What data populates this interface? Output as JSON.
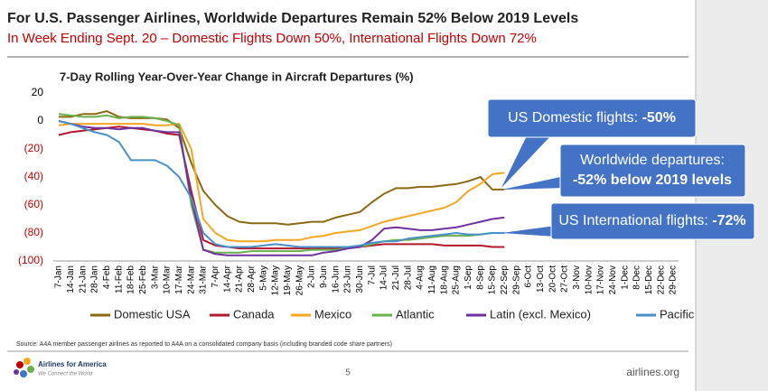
{
  "header": {
    "title": "For U.S. Passenger Airlines, Worldwide Departures Remain 52% Below 2019 Levels",
    "subtitle": "In Week Ending Sept. 20 – Domestic Flights Down 50%, International Flights Down 72%"
  },
  "chart_data": {
    "type": "line",
    "title": "7-Day Rolling Year-Over-Year Change in Aircraft Departures (%)",
    "categories": [
      "7-Jan",
      "14-Jan",
      "21-Jan",
      "28-Jan",
      "4-Feb",
      "11-Feb",
      "18-Feb",
      "25-Feb",
      "3-Mar",
      "10-Mar",
      "17-Mar",
      "24-Mar",
      "31-Mar",
      "7-Apr",
      "14-Apr",
      "21-Apr",
      "28-Apr",
      "5-May",
      "12-May",
      "19-May",
      "26-May",
      "2-Jun",
      "9-Jun",
      "16-Jun",
      "23-Jun",
      "30-Jun",
      "7-Jul",
      "14-Jul",
      "21-Jul",
      "28-Jul",
      "4-Aug",
      "11-Aug",
      "18-Aug",
      "25-Aug",
      "1-Sep",
      "8-Sep",
      "15-Sep",
      "22-Sep",
      "29-Sep",
      "6-Oct",
      "13-Oct",
      "20-Oct",
      "27-Oct",
      "3-Nov",
      "10-Nov",
      "17-Nov",
      "24-Nov",
      "1-Dec",
      "8-Dec",
      "15-Dec",
      "22-Dec",
      "29-Dec"
    ],
    "ylim": [
      -100,
      20
    ],
    "yticks": [
      20,
      0,
      {
        "value": -20,
        "label": "(20)"
      },
      {
        "value": -40,
        "label": "(40)"
      },
      {
        "value": -60,
        "label": "(60)"
      },
      {
        "value": -80,
        "label": "(80)"
      },
      {
        "value": -100,
        "label": "(100)"
      }
    ],
    "negative_tick_color": "#c00000",
    "series": [
      {
        "name": "Domestic USA",
        "color": "#8b6914",
        "values": [
          3,
          3,
          5,
          5,
          7,
          3,
          2,
          2,
          2,
          1,
          -5,
          -30,
          -50,
          -60,
          -68,
          -72,
          -73,
          -73,
          -73,
          -74,
          -73,
          -72,
          -72,
          -69,
          -67,
          -65,
          -58,
          -52,
          -48,
          -48,
          -47,
          -47,
          -46,
          -45,
          -43,
          -40,
          -49,
          -49,
          null,
          null,
          null,
          null,
          null,
          null,
          null,
          null,
          null,
          null,
          null,
          null,
          null,
          null
        ]
      },
      {
        "name": "Canada",
        "color": "#b2182b",
        "values": [
          -10,
          -8,
          -7,
          -6,
          -5,
          -4,
          -5,
          -6,
          -7,
          -9,
          -10,
          -50,
          -85,
          -89,
          -90,
          -91,
          -91,
          -91,
          -91,
          -91,
          -91,
          -91,
          -91,
          -91,
          -90,
          -90,
          -89,
          -88,
          -88,
          -88,
          -88,
          -88,
          -89,
          -89,
          -89,
          -89,
          -90,
          -90,
          null,
          null,
          null,
          null,
          null,
          null,
          null,
          null,
          null,
          null,
          null,
          null,
          null,
          null
        ]
      },
      {
        "name": "Mexico",
        "color": "#f5a623",
        "values": [
          -3,
          -2,
          -2,
          -2,
          -2,
          -2,
          -2,
          -2,
          -3,
          -3,
          -2,
          -20,
          -70,
          -80,
          -85,
          -86,
          -86,
          -86,
          -85,
          -85,
          -85,
          -83,
          -82,
          -80,
          -79,
          -78,
          -75,
          -72,
          -70,
          -68,
          -66,
          -64,
          -62,
          -58,
          -50,
          -45,
          -38,
          -37,
          null,
          null,
          null,
          null,
          null,
          null,
          null,
          null,
          null,
          null,
          null,
          null,
          null,
          null
        ]
      },
      {
        "name": "Atlantic",
        "color": "#6ab04c",
        "values": [
          5,
          4,
          3,
          3,
          4,
          2,
          3,
          3,
          2,
          0,
          -3,
          -60,
          -92,
          -94,
          -94,
          -94,
          -93,
          -93,
          -93,
          -93,
          -93,
          -92,
          -92,
          -92,
          -91,
          -90,
          -88,
          -86,
          -85,
          -85,
          -84,
          -83,
          -82,
          -82,
          -82,
          -81,
          -80,
          -80,
          null,
          null,
          null,
          null,
          null,
          null,
          null,
          null,
          null,
          null,
          null,
          null,
          null,
          null
        ]
      },
      {
        "name": "Latin (excl. Mexico)",
        "color": "#7030a0",
        "values": [
          0,
          -2,
          -4,
          -5,
          -5,
          -6,
          -5,
          -5,
          -7,
          -8,
          -8,
          -55,
          -92,
          -95,
          -96,
          -96,
          -96,
          -96,
          -96,
          -96,
          -96,
          -96,
          -94,
          -93,
          -91,
          -90,
          -85,
          -77,
          -76,
          -77,
          -78,
          -78,
          -77,
          -76,
          -74,
          -72,
          -70,
          -69,
          null,
          null,
          null,
          null,
          null,
          null,
          null,
          null,
          null,
          null,
          null,
          null,
          null,
          null
        ]
      },
      {
        "name": "Pacific",
        "color": "#4a90c8",
        "values": [
          0,
          -2,
          -5,
          -8,
          -10,
          -15,
          -28,
          -28,
          -28,
          -32,
          -40,
          -55,
          -80,
          -88,
          -90,
          -90,
          -90,
          -89,
          -88,
          -89,
          -90,
          -90,
          -90,
          -90,
          -90,
          -89,
          -87,
          -86,
          -86,
          -84,
          -83,
          -82,
          -81,
          -80,
          -81,
          -81,
          -80,
          -80,
          null,
          null,
          null,
          null,
          null,
          null,
          null,
          null,
          null,
          null,
          null,
          null,
          null,
          null
        ]
      }
    ]
  },
  "callouts": [
    {
      "text": "US Domestic flights: ",
      "value": "-50%"
    },
    {
      "text": "Worldwide departures:",
      "value": "-52% below 2019 levels"
    },
    {
      "text": "US International flights: ",
      "value": "-72%"
    }
  ],
  "footer": {
    "source": "Source: A4A member passenger airlines as reported to A4A on a consolidated company basis (including branded code share partners)",
    "logo": "Airlines for America",
    "tagline": "We Connect the World",
    "page": "5",
    "site": "airlines.org"
  }
}
